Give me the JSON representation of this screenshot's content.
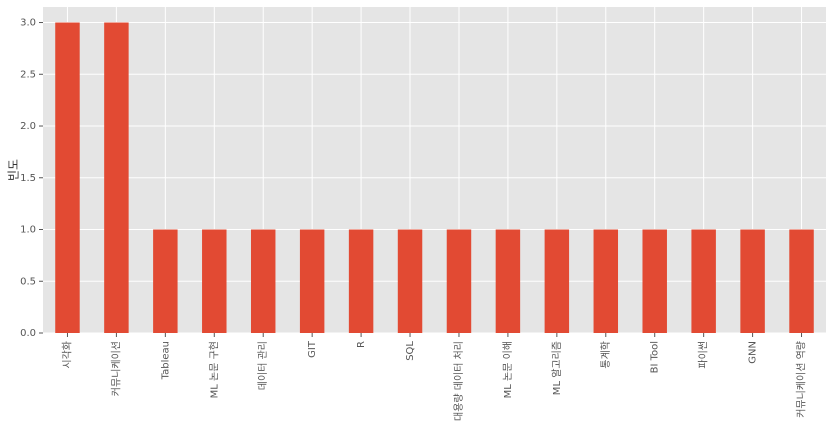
{
  "chart_data": {
    "type": "bar",
    "y_label": "빈도",
    "categories": [
      "시각화",
      "커뮤니케이션",
      "Tableau",
      "ML 논문 구현",
      "데이터 관리",
      "GIT",
      "R",
      "SQL",
      "대용량 데이터 처리",
      "ML 논문 이해",
      "ML 알고리즘",
      "통계학",
      "BI Tool",
      "파이썬",
      "GNN",
      "커뮤니케이션 역량"
    ],
    "values": [
      3,
      3,
      1,
      1,
      1,
      1,
      1,
      1,
      1,
      1,
      1,
      1,
      1,
      1,
      1,
      1
    ],
    "color": "#E24A33",
    "ylim": [
      0,
      3.15
    ],
    "yticks": [
      {
        "value": 0,
        "label": "0.0"
      },
      0.5,
      {
        "value": 1,
        "label": "1.0"
      },
      1.5,
      {
        "value": 2,
        "label": "2.0"
      },
      2.5,
      {
        "value": 3,
        "label": "3.0"
      }
    ],
    "grid": true
  }
}
